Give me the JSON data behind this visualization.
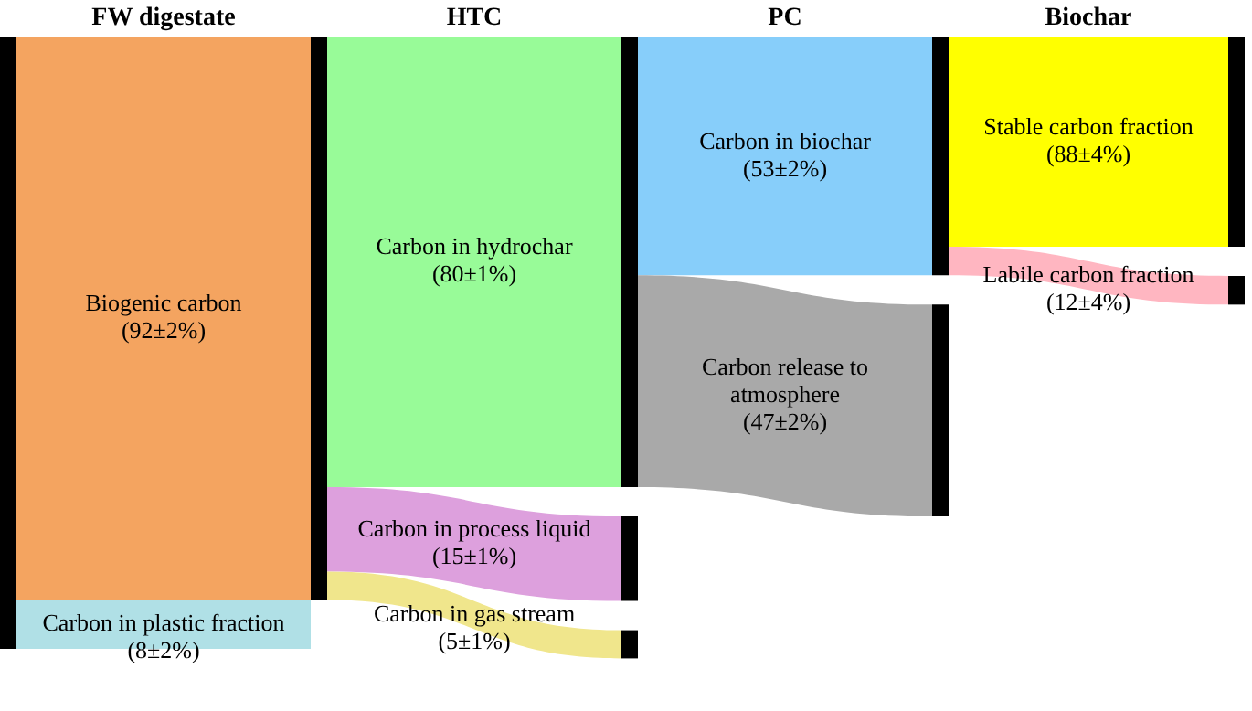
{
  "chart_data": {
    "type": "other",
    "categories": [
      "Biogenic carbon",
      "Carbon in plastic fraction",
      "Carbon in hydrochar",
      "Carbon in process liquid",
      "Carbon in gas stream",
      "Carbon in biochar",
      "Carbon release to atmosphere",
      "Stable carbon fraction",
      "Labile carbon fraction"
    ],
    "series": [
      {
        "name": "FW digestate",
        "values": [
          92,
          8,
          null,
          null,
          null,
          null,
          null,
          null,
          null
        ],
        "value_labels": [
          "(92±2%)",
          "(8±2%)",
          null,
          null,
          null,
          null,
          null,
          null,
          null
        ],
        "colors": [
          "#f4a460",
          "#b0e0e6",
          null,
          null,
          null,
          null,
          null,
          null,
          null
        ]
      },
      {
        "name": "HTC",
        "values": [
          null,
          null,
          80,
          15,
          5,
          null,
          null,
          null,
          null
        ],
        "value_labels": [
          null,
          null,
          "(80±1%)",
          "(15±1%)",
          "(5±1%)",
          null,
          null,
          null,
          null
        ],
        "colors": [
          null,
          null,
          "#98fb98",
          "#dda0dd",
          "#f0e68c",
          null,
          null,
          null,
          null
        ]
      },
      {
        "name": "PC",
        "values": [
          null,
          null,
          null,
          null,
          null,
          53,
          47,
          null,
          null
        ],
        "value_labels": [
          null,
          null,
          null,
          null,
          null,
          "(53±2%)",
          "(47±2%)",
          null,
          null
        ],
        "colors": [
          null,
          null,
          null,
          null,
          null,
          "#87cefa",
          "#a9a9a9",
          null,
          null
        ]
      },
      {
        "name": "Biochar",
        "values": [
          null,
          null,
          null,
          null,
          null,
          null,
          null,
          88,
          12
        ],
        "value_labels": [
          null,
          null,
          null,
          null,
          null,
          null,
          null,
          "(88±4%)",
          "(12±4%)"
        ],
        "colors": [
          null,
          null,
          null,
          null,
          null,
          null,
          null,
          "#ffff00",
          "#ffb6c1"
        ]
      }
    ]
  }
}
